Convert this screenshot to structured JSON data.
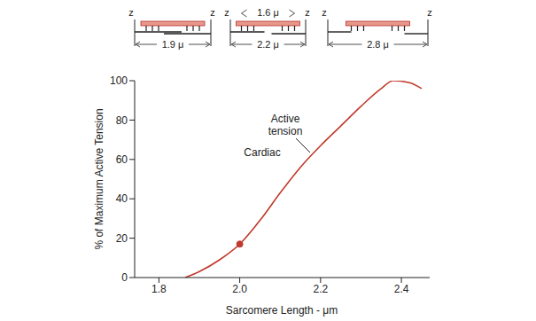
{
  "chart_data": {
    "type": "line",
    "x_label": "Sarcomere Length - μm",
    "y_label": "% of Maximum Active Tension",
    "x": [
      1.865,
      1.9,
      1.95,
      2,
      2.05,
      2.1,
      2.15,
      2.2,
      2.25,
      2.3,
      2.35,
      2.38,
      2.42,
      2.45
    ],
    "values": [
      0,
      3,
      9,
      17,
      29,
      43,
      56,
      67,
      77,
      87,
      96,
      100,
      99,
      96
    ],
    "color": "#c0392b",
    "xlim": [
      1.74,
      2.47
    ],
    "ylim": [
      0,
      100
    ],
    "xticks": [
      1.8,
      {
        "value": 2,
        "label": "2.0"
      },
      2.2,
      2.4
    ],
    "yticks": [
      0,
      20,
      40,
      60,
      80,
      100
    ],
    "marked_point": {
      "x": 2,
      "y": 17
    },
    "annotations": [
      "Active tension",
      "Cardiac"
    ],
    "sarcomere_diagrams": {
      "z_label": "z",
      "thick_filament_label": "1.6 μ",
      "length_labels": [
        "1.9 μ",
        "2.2 μ",
        "2.8 μ"
      ]
    }
  }
}
